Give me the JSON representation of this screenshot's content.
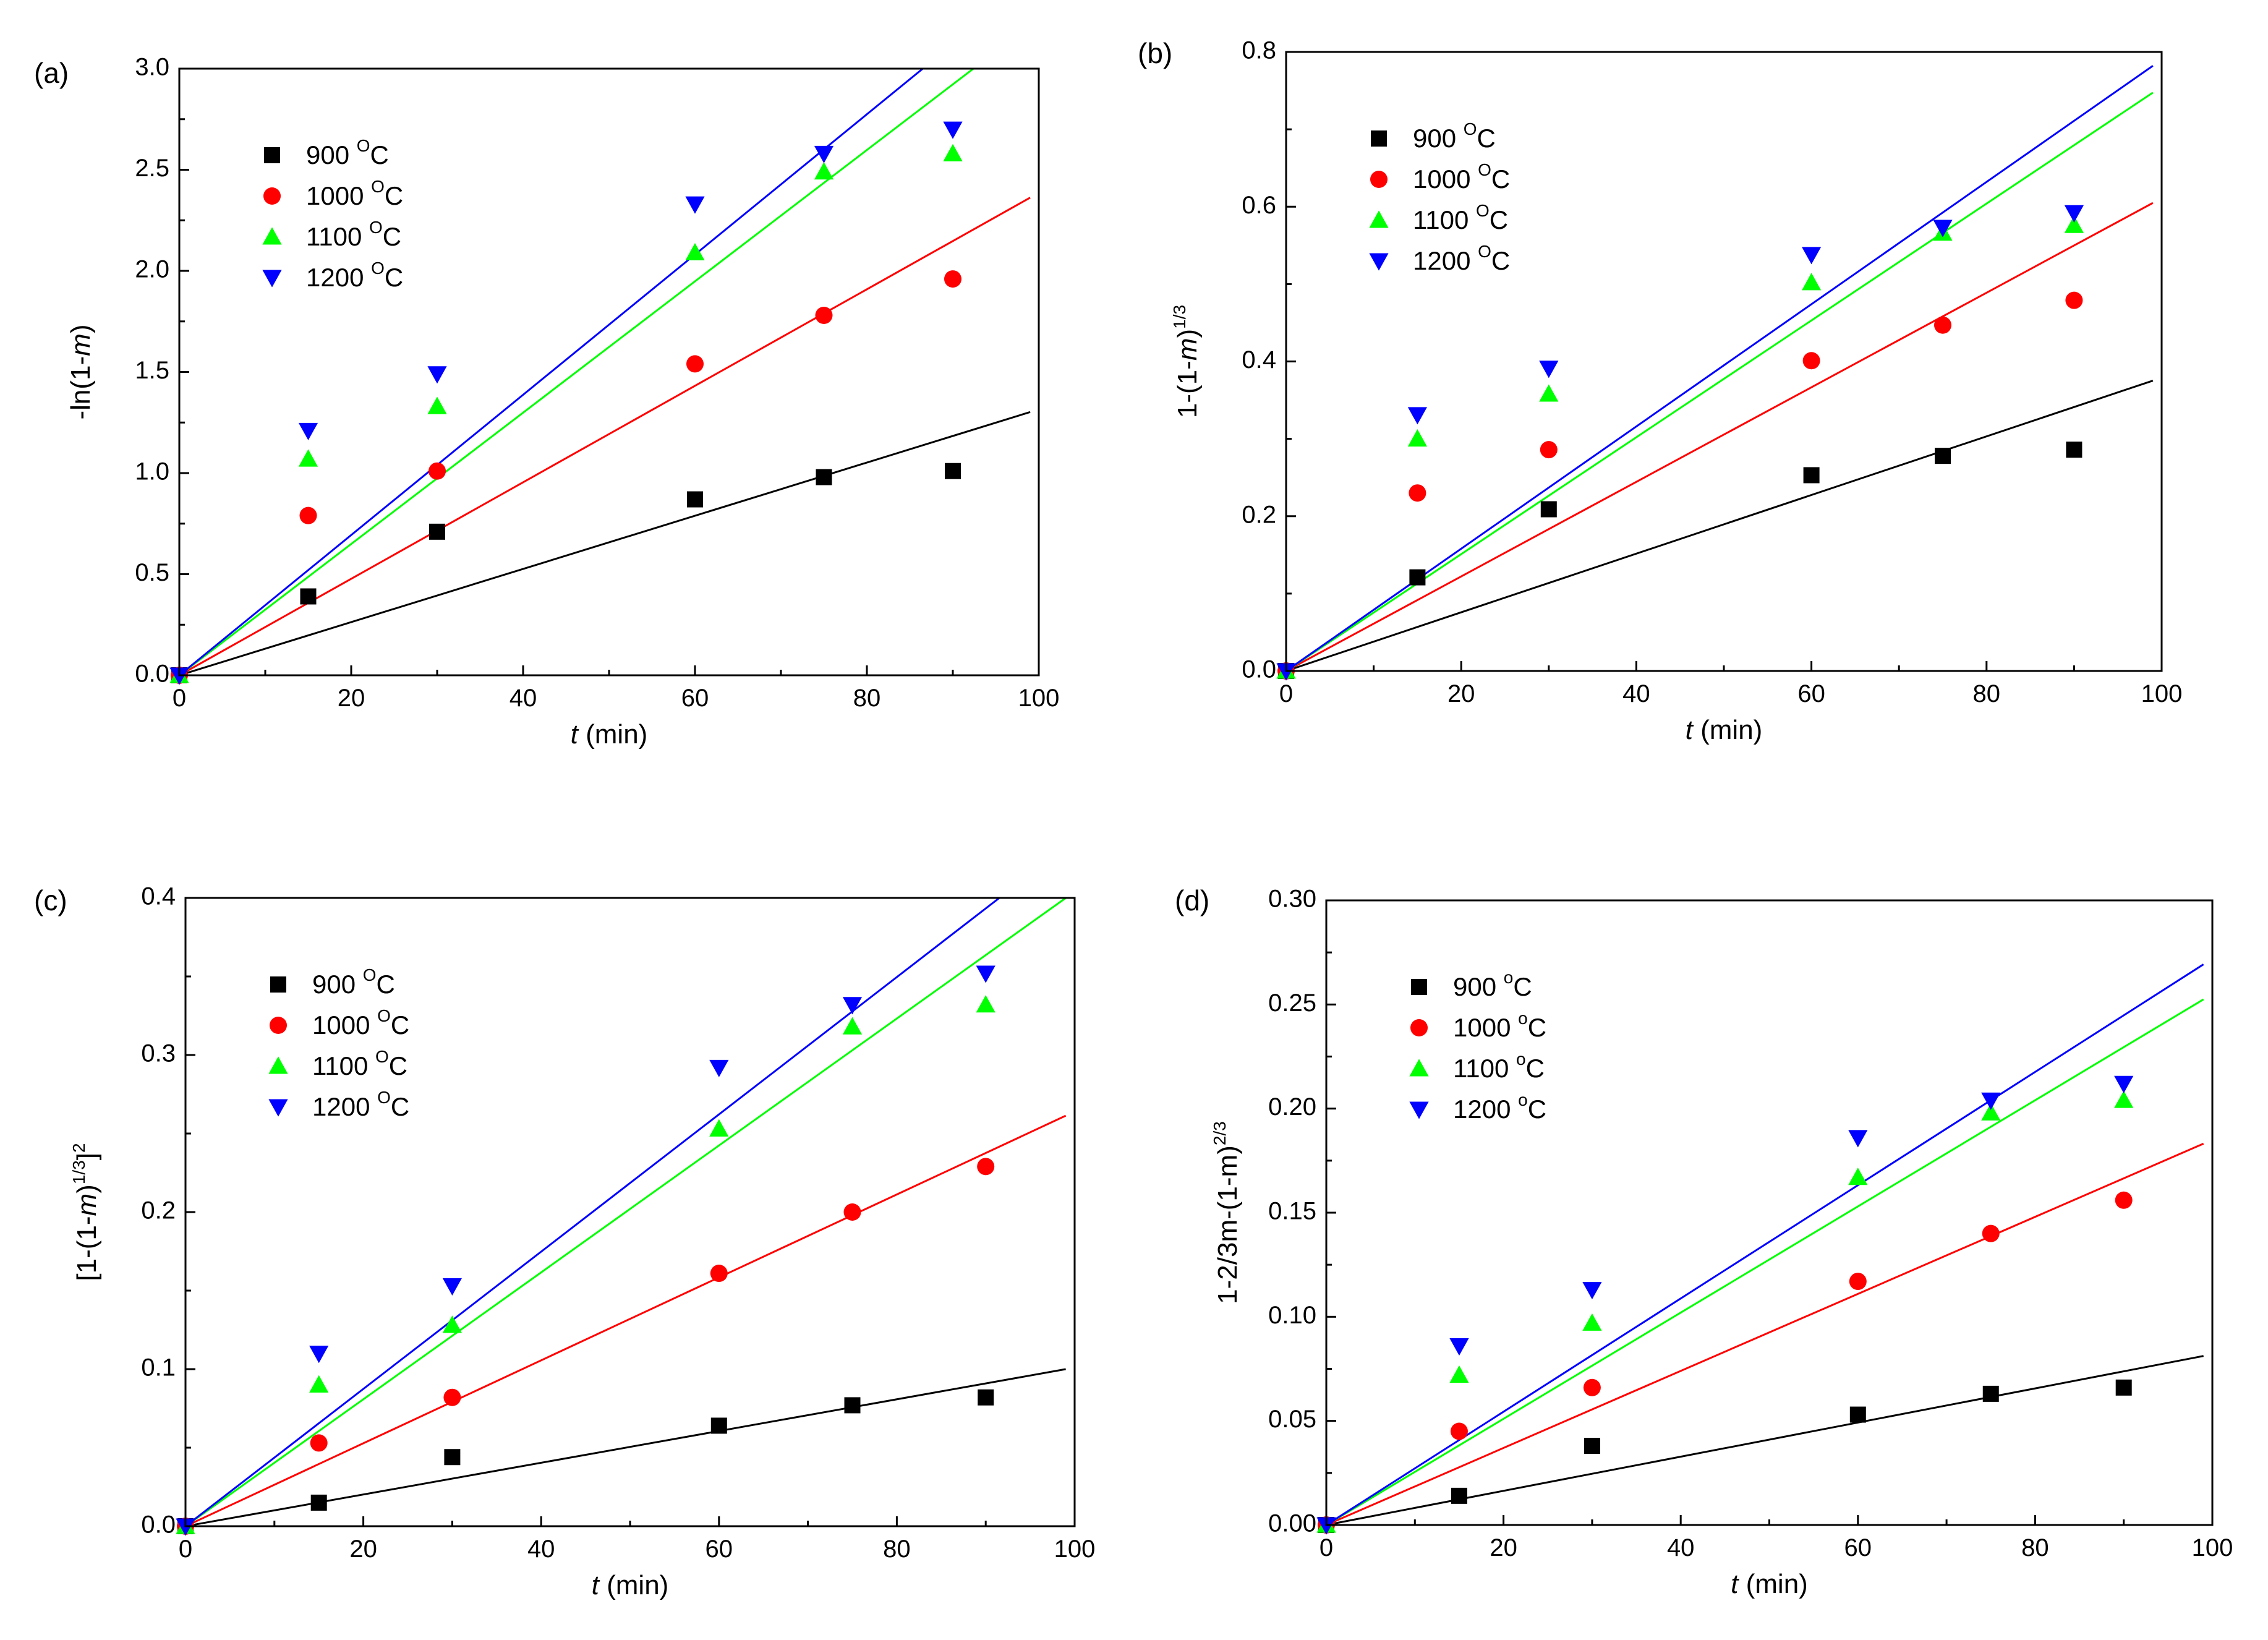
{
  "figure": {
    "name": "kinetic-model-fits-figure"
  },
  "chart_data": [
    {
      "panel_label": "(a)",
      "type": "scatter",
      "ylabel": {
        "pre": "-ln(1-",
        "var": "m",
        "post": ")",
        "sup": "",
        "post2": ""
      },
      "xlabel": {
        "var": "t",
        "rest": " (min)"
      },
      "xlim": [
        0,
        100
      ],
      "ylim": [
        0,
        3.0
      ],
      "xticks": [
        0,
        20,
        40,
        60,
        80,
        100
      ],
      "xtick_labels": [
        "0",
        "20",
        "40",
        "60",
        "80",
        "100"
      ],
      "yticks": [
        0,
        0.5,
        1.0,
        1.5,
        2.0,
        2.5,
        3.0
      ],
      "ytick_labels": [
        "0.0",
        "0.5",
        "1.0",
        "1.5",
        "2.0",
        "2.5",
        "3.0"
      ],
      "x": [
        15,
        30,
        60,
        75,
        90
      ],
      "series": [
        {
          "name": "900",
          "unit": "C",
          "unit_sup": "O",
          "color": "#000000",
          "marker": "square",
          "values": [
            0.39,
            0.71,
            0.87,
            0.98,
            1.01
          ],
          "fit_slope": 0.01315
        },
        {
          "name": "1000",
          "unit": "C",
          "unit_sup": "O",
          "color": "#ff0000",
          "marker": "circle",
          "values": [
            0.79,
            1.01,
            1.54,
            1.78,
            1.96
          ],
          "fit_slope": 0.02386
        },
        {
          "name": "1100",
          "unit": "C",
          "unit_sup": "O",
          "color": "#00ff00",
          "marker": "triangle-up",
          "values": [
            1.07,
            1.33,
            2.09,
            2.49,
            2.58
          ],
          "fit_slope": 0.03247
        },
        {
          "name": "1200",
          "unit": "C",
          "unit_sup": "O",
          "color": "#0000ff",
          "marker": "triangle-down",
          "values": [
            1.21,
            1.49,
            2.33,
            2.58,
            2.7
          ],
          "fit_slope": 0.03468
        }
      ],
      "legend": "upper-left"
    },
    {
      "panel_label": "(b)",
      "type": "scatter",
      "ylabel": {
        "pre": "1-(1-",
        "var": "m",
        "post": ")",
        "sup": "1/3",
        "post2": ""
      },
      "xlabel": {
        "var": "t",
        "rest": " (min)"
      },
      "xlim": [
        0,
        100
      ],
      "ylim": [
        0,
        0.8
      ],
      "xticks": [
        0,
        20,
        40,
        60,
        80,
        100
      ],
      "xtick_labels": [
        "0",
        "20",
        "40",
        "60",
        "80",
        "100"
      ],
      "yticks": [
        0,
        0.2,
        0.4,
        0.6,
        0.8
      ],
      "ytick_labels": [
        "0.0",
        "0.2",
        "0.4",
        "0.6",
        "0.8"
      ],
      "x": [
        15,
        30,
        60,
        75,
        90
      ],
      "series": [
        {
          "name": "900",
          "unit": "C",
          "unit_sup": "O",
          "color": "#000000",
          "marker": "square",
          "values": [
            0.121,
            0.209,
            0.253,
            0.278,
            0.286
          ],
          "fit_slope": 0.00379
        },
        {
          "name": "1000",
          "unit": "C",
          "unit_sup": "O",
          "color": "#ff0000",
          "marker": "circle",
          "values": [
            0.23,
            0.286,
            0.401,
            0.447,
            0.479
          ],
          "fit_slope": 0.00611
        },
        {
          "name": "1100",
          "unit": "C",
          "unit_sup": "O",
          "color": "#00ff00",
          "marker": "triangle-up",
          "values": [
            0.3,
            0.358,
            0.502,
            0.566,
            0.576
          ],
          "fit_slope": 0.00755
        },
        {
          "name": "1200",
          "unit": "C",
          "unit_sup": "O",
          "color": "#0000ff",
          "marker": "triangle-down",
          "values": [
            0.331,
            0.391,
            0.538,
            0.573,
            0.592
          ],
          "fit_slope": 0.0079
        }
      ],
      "legend": "upper-left"
    },
    {
      "panel_label": "(c)",
      "type": "scatter",
      "ylabel": {
        "pre": "[1-(1-",
        "var": "m",
        "post": ")",
        "sup": "1/3",
        "post2": "]",
        "sup2": "2"
      },
      "xlabel": {
        "var": "t",
        "rest": " (min)"
      },
      "xlim": [
        0,
        100
      ],
      "ylim": [
        0,
        0.4
      ],
      "xticks": [
        0,
        20,
        40,
        60,
        80,
        100
      ],
      "xtick_labels": [
        "0",
        "20",
        "40",
        "60",
        "80",
        "100"
      ],
      "yticks": [
        0,
        0.1,
        0.2,
        0.3,
        0.4
      ],
      "ytick_labels": [
        "0.0",
        "0.1",
        "0.2",
        "0.3",
        "0.4"
      ],
      "x": [
        15,
        30,
        60,
        75,
        90
      ],
      "series": [
        {
          "name": "900",
          "unit": "C",
          "unit_sup": "O",
          "color": "#000000",
          "marker": "square",
          "values": [
            0.015,
            0.044,
            0.064,
            0.077,
            0.082
          ],
          "fit_slope": 0.00101
        },
        {
          "name": "1000",
          "unit": "C",
          "unit_sup": "O",
          "color": "#ff0000",
          "marker": "circle",
          "values": [
            0.053,
            0.082,
            0.161,
            0.2,
            0.229
          ],
          "fit_slope": 0.00264
        },
        {
          "name": "1100",
          "unit": "C",
          "unit_sup": "O",
          "color": "#00ff00",
          "marker": "triangle-up",
          "values": [
            0.09,
            0.128,
            0.253,
            0.318,
            0.332
          ],
          "fit_slope": 0.00404
        },
        {
          "name": "1200",
          "unit": "C",
          "unit_sup": "O",
          "color": "#0000ff",
          "marker": "triangle-down",
          "values": [
            0.11,
            0.153,
            0.292,
            0.332,
            0.352
          ],
          "fit_slope": 0.00437
        }
      ],
      "legend": "upper-left"
    },
    {
      "panel_label": "(d)",
      "type": "scatter",
      "ylabel": {
        "pre": "1-2/3m-(1-m)",
        "var": "",
        "post": "",
        "sup": "2/3",
        "post2": ""
      },
      "xlabel": {
        "var": "t",
        "rest": " (min)"
      },
      "xlim": [
        0,
        100
      ],
      "ylim": [
        0,
        0.3
      ],
      "xticks": [
        0,
        20,
        40,
        60,
        80,
        100
      ],
      "xtick_labels": [
        "0",
        "20",
        "40",
        "60",
        "80",
        "100"
      ],
      "yticks": [
        0,
        0.05,
        0.1,
        0.15,
        0.2,
        0.25,
        0.3
      ],
      "ytick_labels": [
        "0.00",
        "0.05",
        "0.10",
        "0.15",
        "0.20",
        "0.25",
        "0.30"
      ],
      "x": [
        15,
        30,
        60,
        75,
        90
      ],
      "series": [
        {
          "name": "900",
          "unit": "C",
          "unit_sup": "o",
          "color": "#000000",
          "marker": "square",
          "values": [
            0.014,
            0.038,
            0.053,
            0.063,
            0.066
          ],
          "fit_slope": 0.00082
        },
        {
          "name": "1000",
          "unit": "C",
          "unit_sup": "o",
          "color": "#ff0000",
          "marker": "circle",
          "values": [
            0.045,
            0.066,
            0.117,
            0.14,
            0.156
          ],
          "fit_slope": 0.00185
        },
        {
          "name": "1100",
          "unit": "C",
          "unit_sup": "o",
          "color": "#00ff00",
          "marker": "triangle-up",
          "values": [
            0.072,
            0.097,
            0.167,
            0.198,
            0.204
          ],
          "fit_slope": 0.00255
        },
        {
          "name": "1200",
          "unit": "C",
          "unit_sup": "o",
          "color": "#0000ff",
          "marker": "triangle-down",
          "values": [
            0.086,
            0.113,
            0.186,
            0.204,
            0.212
          ],
          "fit_slope": 0.00272
        }
      ],
      "legend": "upper-left"
    }
  ]
}
